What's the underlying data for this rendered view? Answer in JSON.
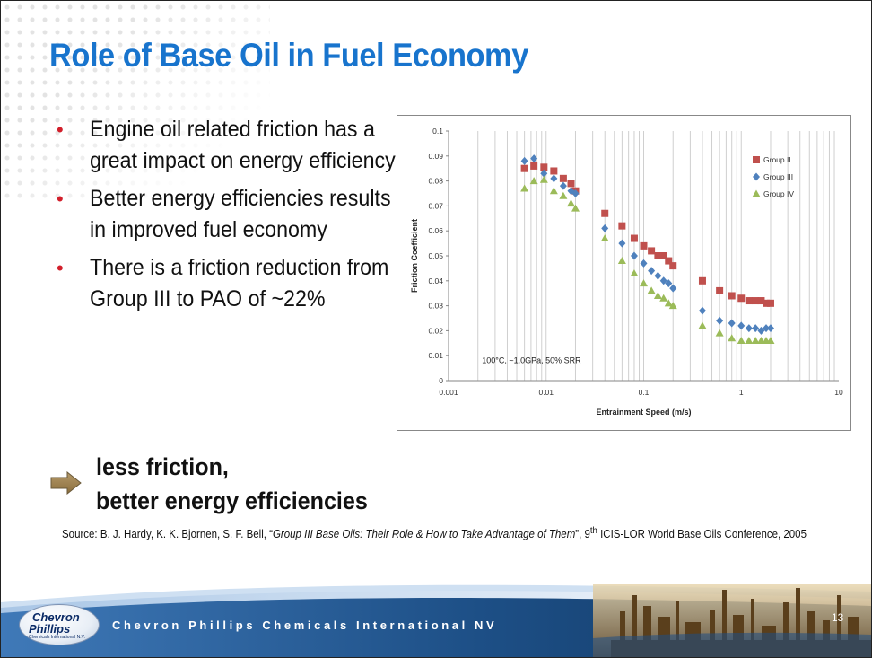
{
  "slide": {
    "title": "Role of Base Oil in Fuel Economy",
    "bullets": [
      "Engine oil related friction has a great impact on energy efficiency",
      "Better energy efficiencies results in improved fuel economy",
      "There is a friction reduction from Group III to PAO of ~22%"
    ],
    "conclusion_line1": "less friction,",
    "conclusion_line2": "better energy efficiencies",
    "source_prefix": "Source:  B. J. Hardy, K. K. Bjornen, S. F. Bell, “",
    "source_title": "Group III Base Oils: Their Role & How to Take Advantage of Them",
    "source_mid": "”, 9",
    "source_sup": "th",
    "source_suffix": " ICIS-LOR World Base Oils Conference, 2005",
    "footer_company": "Chevron Phillips Chemicals International NV",
    "logo_line1": "Chevron",
    "logo_line2": "Phillips",
    "logo_line3": "Chemicals International N.V.",
    "page_number": "13"
  },
  "colors": {
    "title": "#1874cd",
    "bullet": "#d21f2b",
    "group_ii": "#c0504d",
    "group_iii": "#4f81bd",
    "group_iv": "#9bbb59",
    "footer_blue": "#1d4f86"
  },
  "chart_data": {
    "type": "scatter",
    "xlabel": "Entrainment Speed (m/s)",
    "ylabel": "Friction Coefficient",
    "xscale": "log",
    "xlim": [
      0.001,
      10
    ],
    "ylim": [
      0,
      0.1
    ],
    "xticks": [
      "0.001",
      "0.01",
      "0.1",
      "1",
      "10"
    ],
    "yticks": [
      "0",
      "0.01",
      "0.02",
      "0.03",
      "0.04",
      "0.05",
      "0.06",
      "0.07",
      "0.08",
      "0.09",
      "0.1"
    ],
    "annotation": "100°C, ~1.0GPa, 50% SRR",
    "legend_position": "top-right",
    "grid": "vertical",
    "x": [
      0.006,
      0.0075,
      0.0095,
      0.012,
      0.015,
      0.018,
      0.02,
      0.04,
      0.06,
      0.08,
      0.1,
      0.12,
      0.14,
      0.16,
      0.18,
      0.2,
      0.4,
      0.6,
      0.8,
      1.0,
      1.2,
      1.4,
      1.6,
      1.8,
      2.0
    ],
    "series": [
      {
        "name": "Group II",
        "marker": "square",
        "values": [
          0.085,
          0.086,
          0.0855,
          0.084,
          0.081,
          0.079,
          0.076,
          0.067,
          0.062,
          0.057,
          0.054,
          0.052,
          0.05,
          0.05,
          0.048,
          0.046,
          0.04,
          0.036,
          0.034,
          0.033,
          0.032,
          0.032,
          0.032,
          0.031,
          0.031
        ]
      },
      {
        "name": "Group III",
        "marker": "diamond",
        "values": [
          0.088,
          0.089,
          0.083,
          0.081,
          0.078,
          0.076,
          0.075,
          0.061,
          0.055,
          0.05,
          0.047,
          0.044,
          0.042,
          0.04,
          0.039,
          0.037,
          0.028,
          0.024,
          0.023,
          0.022,
          0.021,
          0.021,
          0.02,
          0.021,
          0.021
        ]
      },
      {
        "name": "Group IV",
        "marker": "triangle",
        "values": [
          0.077,
          0.08,
          0.0805,
          0.076,
          0.074,
          0.071,
          0.069,
          0.057,
          0.048,
          0.043,
          0.039,
          0.036,
          0.034,
          0.033,
          0.031,
          0.03,
          0.022,
          0.019,
          0.017,
          0.016,
          0.016,
          0.016,
          0.016,
          0.016,
          0.016
        ]
      }
    ]
  }
}
